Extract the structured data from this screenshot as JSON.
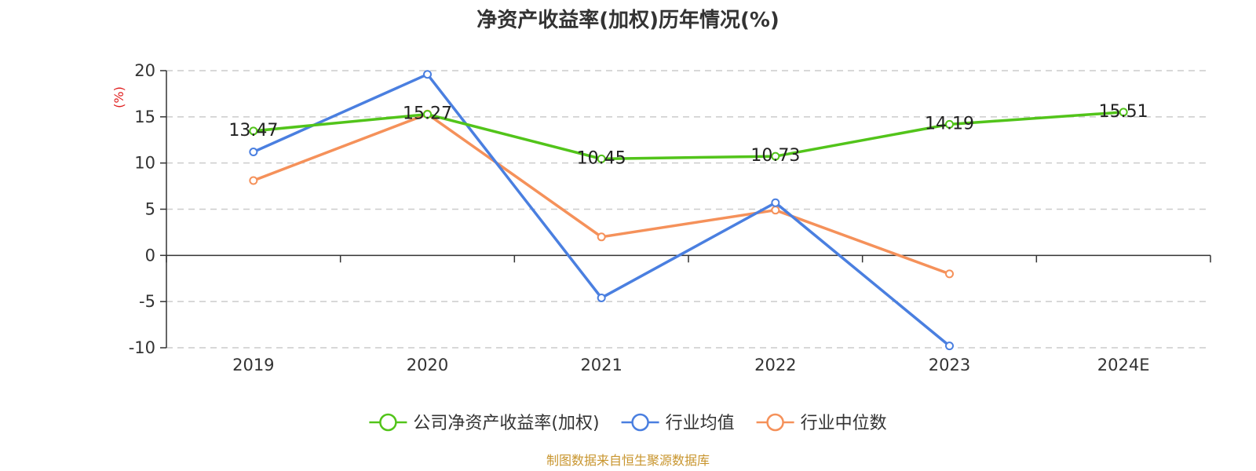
{
  "colors": {
    "company": "#52c41a",
    "industry_avg": "#4a7fe0",
    "industry_median": "#f5915a",
    "ylabel": "#e02020",
    "source": "#c8952e"
  },
  "source_text": "制图数据来自恒生聚源数据库",
  "chart_data": {
    "type": "line",
    "title": "净资产收益率(加权)历年情况(%)",
    "ylabel": "(%)",
    "xlabel": "",
    "categories": [
      "2019",
      "2020",
      "2021",
      "2022",
      "2023",
      "2024E"
    ],
    "ylim": [
      -10,
      20
    ],
    "yticks": [
      20,
      15,
      10,
      5,
      0,
      -5,
      -10
    ],
    "grid": true,
    "legend_position": "bottom",
    "series": [
      {
        "name": "公司净资产收益率(加权)",
        "color_key": "company",
        "values": [
          13.47,
          15.27,
          10.45,
          10.73,
          14.19,
          15.51
        ],
        "labels": [
          "13.47",
          "15.27",
          "10.45",
          "10.73",
          "14.19",
          "15.51"
        ]
      },
      {
        "name": "行业均值",
        "color_key": "industry_avg",
        "values": [
          11.2,
          19.6,
          -4.6,
          5.7,
          -9.8,
          null
        ]
      },
      {
        "name": "行业中位数",
        "color_key": "industry_median",
        "values": [
          8.1,
          15.3,
          2.0,
          4.9,
          -2.0,
          null
        ]
      }
    ]
  }
}
